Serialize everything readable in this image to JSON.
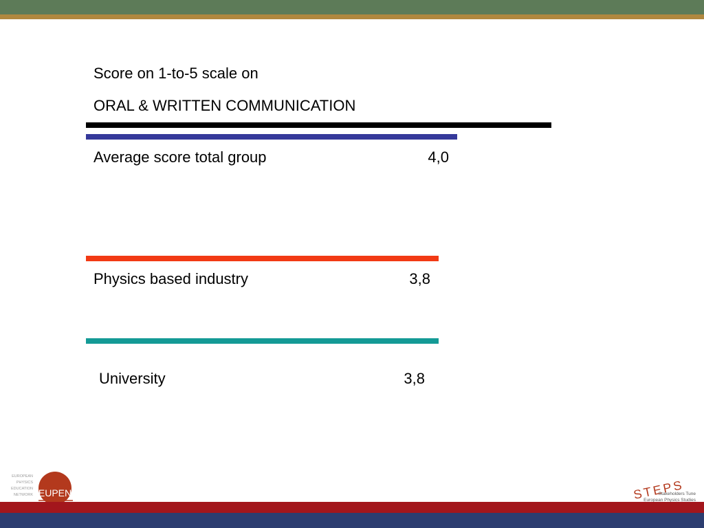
{
  "chart_data": {
    "type": "bar",
    "title_line1": "Score on 1-to-5 scale on",
    "title_line2": "ORAL & WRITTEN COMMUNICATION",
    "scale_max": 5,
    "categories": [
      "Average score total group",
      "Physics based industry",
      "University"
    ],
    "values": [
      4.0,
      3.8,
      3.8
    ],
    "value_labels": [
      "4,0",
      "3,8",
      "3,8"
    ],
    "colors": [
      "#35399a",
      "#f23a14",
      "#149a96"
    ],
    "scale_bar_color": "#000000"
  },
  "logos": {
    "left": {
      "lines": [
        "EUROPEAN",
        "PHYSICS",
        "EDUCATION",
        "NETWORK"
      ],
      "mark": "EUPEN",
      "color": "#b3391d"
    },
    "right": {
      "mark": "STEPS",
      "line1": "Stakeholders Tune",
      "line2": "European Physics Studies",
      "color": "#b3391d"
    }
  },
  "theme": {
    "band_green": "#5d7b58",
    "band_gold": "#b0883f",
    "band_red": "#a3161c",
    "band_blue": "#2c3d70"
  }
}
